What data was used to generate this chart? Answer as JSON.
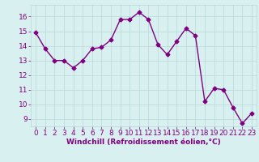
{
  "x": [
    0,
    1,
    2,
    3,
    4,
    5,
    6,
    7,
    8,
    9,
    10,
    11,
    12,
    13,
    14,
    15,
    16,
    17,
    18,
    19,
    20,
    21,
    22,
    23
  ],
  "y": [
    14.9,
    13.8,
    13.0,
    13.0,
    12.5,
    13.0,
    13.8,
    13.9,
    14.4,
    15.8,
    15.8,
    16.3,
    15.8,
    14.1,
    13.4,
    14.3,
    15.2,
    14.7,
    10.2,
    11.1,
    11.0,
    9.8,
    8.7,
    9.4
  ],
  "line_color": "#800080",
  "marker": "D",
  "markersize": 2.5,
  "linewidth": 1.0,
  "xlabel": "Windchill (Refroidissement éolien,°C)",
  "xlim": [
    -0.5,
    23.5
  ],
  "ylim": [
    8.5,
    16.8
  ],
  "yticks": [
    9,
    10,
    11,
    12,
    13,
    14,
    15,
    16
  ],
  "xticks": [
    0,
    1,
    2,
    3,
    4,
    5,
    6,
    7,
    8,
    9,
    10,
    11,
    12,
    13,
    14,
    15,
    16,
    17,
    18,
    19,
    20,
    21,
    22,
    23
  ],
  "bg_color": "#d8f0f0",
  "grid_color": "#b8d8d8",
  "tick_color": "#800080",
  "label_color": "#800080",
  "xlabel_fontsize": 6.5,
  "tick_fontsize": 6.5
}
